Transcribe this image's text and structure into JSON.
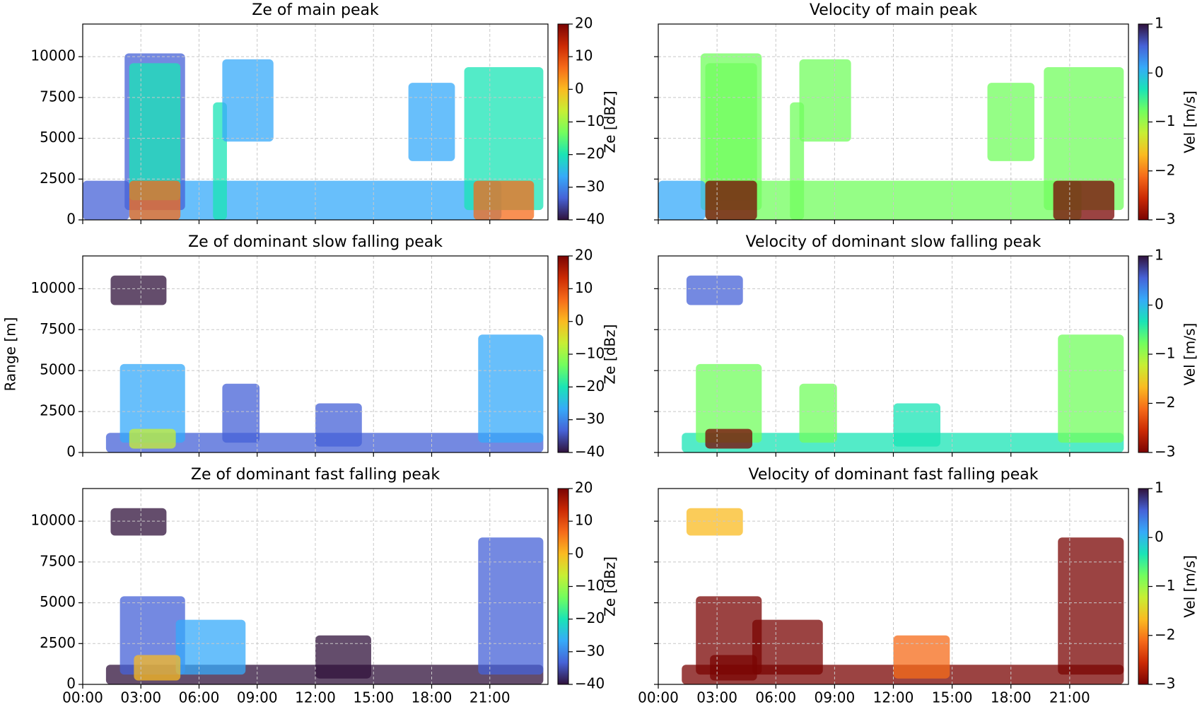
{
  "chart_data": [
    {
      "type": "heatmap",
      "title": "Ze of main peak",
      "ylim": [
        0,
        12000
      ],
      "yticks": [
        0,
        2500,
        5000,
        7500,
        10000
      ],
      "xlim": [
        0,
        24
      ],
      "grid": true,
      "colormap": "turbo",
      "colorbar": {
        "label": "Ze [dBZ]",
        "lim": [
          -40,
          20
        ],
        "ticks": [
          {
            "value": -40,
            "label": "−40"
          },
          {
            "value": -30,
            "label": "−30"
          },
          {
            "value": -20,
            "label": "−20"
          },
          {
            "value": -10,
            "label": "−10"
          },
          0,
          10,
          20
        ]
      }
    },
    {
      "type": "heatmap",
      "title": "Velocity of main peak",
      "ylim": [
        0,
        12000
      ],
      "xlim": [
        0,
        24
      ],
      "grid": true,
      "colormap": "turbo_r",
      "colorbar": {
        "label": "Vel [m/s]",
        "lim": [
          -3,
          1
        ],
        "ticks": [
          {
            "value": -3,
            "label": "−3"
          },
          {
            "value": -2,
            "label": "−2"
          },
          {
            "value": -1,
            "label": "−1"
          },
          0,
          1
        ]
      }
    },
    {
      "type": "heatmap",
      "title": "Ze of dominant slow falling peak",
      "ylabel": "Range [m]",
      "ylim": [
        0,
        12000
      ],
      "yticks": [
        0,
        2500,
        5000,
        7500,
        10000
      ],
      "xlim": [
        0,
        24
      ],
      "grid": true,
      "colormap": "turbo",
      "colorbar": {
        "label": "Ze [dBz]",
        "lim": [
          -40,
          20
        ],
        "ticks": [
          {
            "value": -40,
            "label": "−40"
          },
          {
            "value": -30,
            "label": "−30"
          },
          {
            "value": -20,
            "label": "−20"
          },
          {
            "value": -10,
            "label": "−10"
          },
          0,
          10,
          20
        ]
      }
    },
    {
      "type": "heatmap",
      "title": "Velocity of dominant slow falling peak",
      "ylim": [
        0,
        12000
      ],
      "xlim": [
        0,
        24
      ],
      "grid": true,
      "colormap": "turbo_r",
      "colorbar": {
        "label": "Vel [m/s]",
        "lim": [
          -3,
          1
        ],
        "ticks": [
          {
            "value": -3,
            "label": "−3"
          },
          {
            "value": -2,
            "label": "−2"
          },
          {
            "value": -1,
            "label": "−1"
          },
          0,
          1
        ]
      }
    },
    {
      "type": "heatmap",
      "title": "Ze of dominant fast falling peak",
      "ylim": [
        0,
        12000
      ],
      "yticks": [
        0,
        2500,
        5000,
        7500,
        10000
      ],
      "xlim": [
        0,
        24
      ],
      "xticks": [
        {
          "value": 0,
          "label": "00:00"
        },
        {
          "value": 3,
          "label": "03:00"
        },
        {
          "value": 6,
          "label": "06:00"
        },
        {
          "value": 9,
          "label": "09:00"
        },
        {
          "value": 12,
          "label": "12:00"
        },
        {
          "value": 15,
          "label": "15:00"
        },
        {
          "value": 18,
          "label": "18:00"
        },
        {
          "value": 21,
          "label": "21:00"
        }
      ],
      "grid": true,
      "colormap": "turbo",
      "colorbar": {
        "label": "Ze [dBz]",
        "lim": [
          -40,
          20
        ],
        "ticks": [
          {
            "value": -40,
            "label": "−40"
          },
          {
            "value": -30,
            "label": "−30"
          },
          {
            "value": -20,
            "label": "−20"
          },
          {
            "value": -10,
            "label": "−10"
          },
          0,
          10,
          20
        ]
      }
    },
    {
      "type": "heatmap",
      "title": "Velocity of dominant fast falling peak",
      "ylim": [
        0,
        12000
      ],
      "xlim": [
        0,
        24
      ],
      "xticks": [
        {
          "value": 0,
          "label": "00:00"
        },
        {
          "value": 3,
          "label": "03:00"
        },
        {
          "value": 6,
          "label": "06:00"
        },
        {
          "value": 9,
          "label": "09:00"
        },
        {
          "value": 12,
          "label": "12:00"
        },
        {
          "value": 15,
          "label": "15:00"
        },
        {
          "value": 18,
          "label": "18:00"
        },
        {
          "value": 21,
          "label": "21:00"
        }
      ],
      "grid": true,
      "colormap": "turbo_r",
      "colorbar": {
        "label": "Vel [m/s]",
        "lim": [
          -3,
          1
        ],
        "ticks": [
          {
            "value": -3,
            "label": "−3"
          },
          {
            "value": -2,
            "label": "−2"
          },
          {
            "value": -1,
            "label": "−1"
          },
          0,
          1
        ]
      }
    }
  ]
}
